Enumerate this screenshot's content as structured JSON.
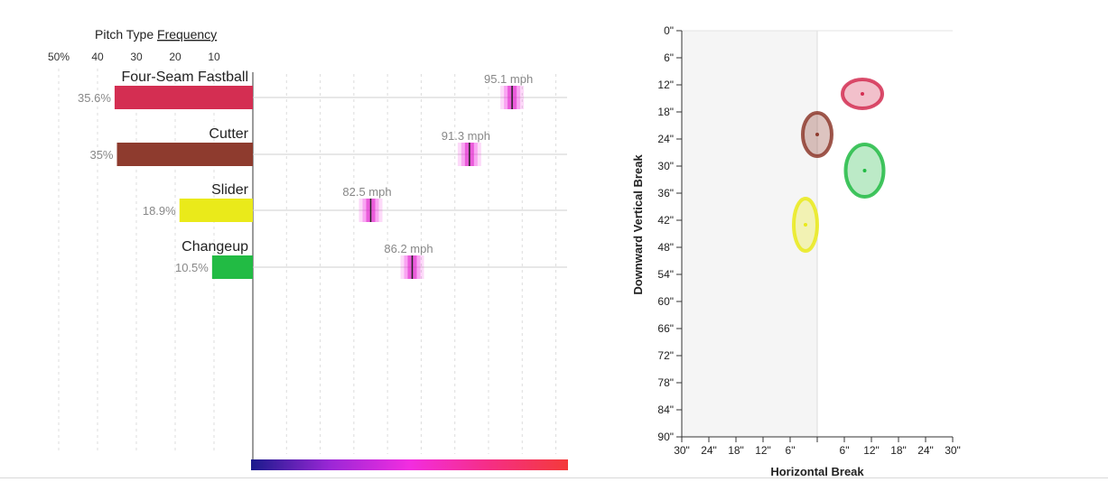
{
  "chart_data": [
    {
      "type": "bar",
      "title_prefix": "Pitch Type ",
      "title_link": "Frequency",
      "frequency_ticks": [
        "50%",
        "40",
        "30",
        "20",
        "10"
      ],
      "frequency_domain": [
        0,
        50
      ],
      "velocity_domain": [
        72,
        100
      ],
      "pitches": [
        {
          "name": "Four-Seam Fastball",
          "frequency": 35.6,
          "frequency_label": "35.6%",
          "velocity": 95.1,
          "velocity_label": "95.1 mph",
          "color": "#d42e52"
        },
        {
          "name": "Cutter",
          "frequency": 35.0,
          "frequency_label": "35%",
          "velocity": 91.3,
          "velocity_label": "91.3 mph",
          "color": "#8e3b2e"
        },
        {
          "name": "Slider",
          "frequency": 18.9,
          "frequency_label": "18.9%",
          "velocity": 82.5,
          "velocity_label": "82.5 mph",
          "color": "#eaea1a"
        },
        {
          "name": "Changeup",
          "frequency": 10.5,
          "frequency_label": "10.5%",
          "velocity": 86.2,
          "velocity_label": "86.2 mph",
          "color": "#22bb44"
        }
      ],
      "velocity_scale_colors": [
        "#1a1a8c",
        "#9b27d6",
        "#f22de0",
        "#f52e85",
        "#f43a3a"
      ]
    },
    {
      "type": "scatter",
      "xlabel": "Horizontal Break",
      "ylabel": "Downward Vertical Break",
      "x_ticks": [
        "30\"",
        "24\"",
        "18\"",
        "12\"",
        "6\"",
        "",
        "6\"",
        "12\"",
        "18\"",
        "24\"",
        "30\""
      ],
      "y_ticks": [
        "0\"",
        "6\"",
        "12\"",
        "18\"",
        "24\"",
        "30\"",
        "36\"",
        "42\"",
        "48\"",
        "54\"",
        "60\"",
        "66\"",
        "72\"",
        "78\"",
        "84\"",
        "90\""
      ],
      "xlim": [
        -30,
        30
      ],
      "ylim": [
        0,
        90
      ],
      "points": [
        {
          "pitch": "Four-Seam Fastball",
          "x": 10,
          "y": 14,
          "x_spread": 4.4,
          "y_spread": 3.2,
          "color": "#d42e52"
        },
        {
          "pitch": "Cutter",
          "x": 0,
          "y": 23,
          "x_spread": 3.2,
          "y_spread": 4.8,
          "color": "#8e3b2e"
        },
        {
          "pitch": "Slider",
          "x": -2.6,
          "y": 43,
          "x_spread": 2.6,
          "y_spread": 5.8,
          "color": "#eaea1a"
        },
        {
          "pitch": "Changeup",
          "x": 10.5,
          "y": 31,
          "x_spread": 4.2,
          "y_spread": 5.8,
          "color": "#22bb44"
        }
      ]
    }
  ]
}
